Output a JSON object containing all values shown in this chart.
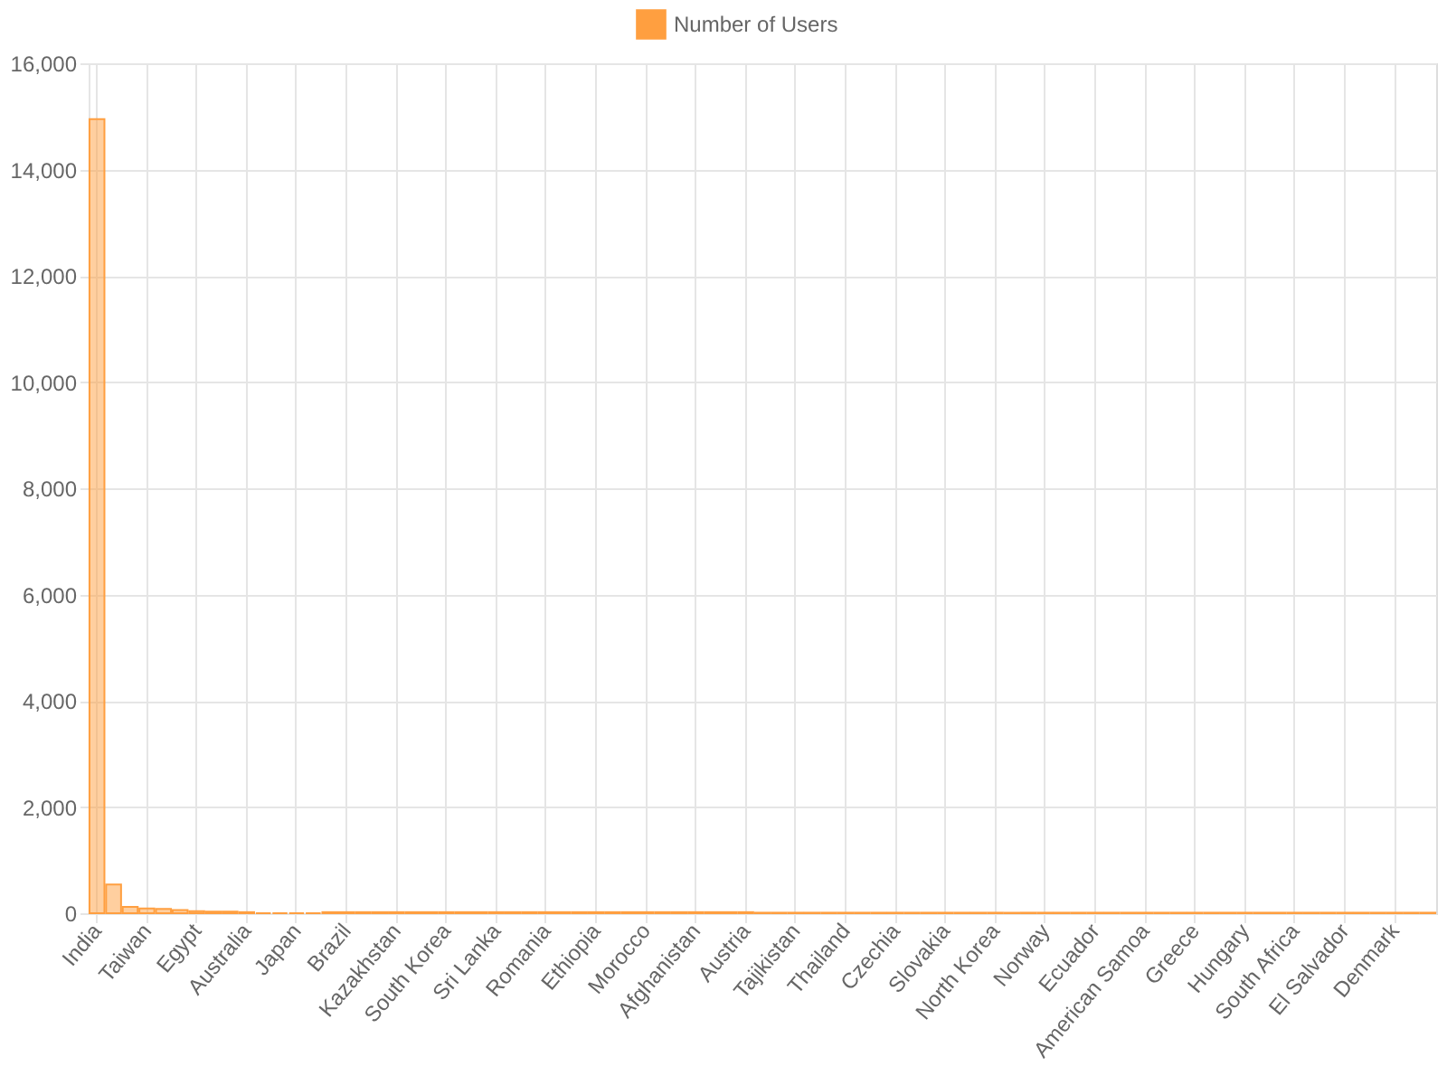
{
  "chart_data": {
    "type": "bar",
    "categories": [
      "India",
      null,
      null,
      "Taiwan",
      null,
      null,
      "Egypt",
      null,
      null,
      "Australia",
      null,
      null,
      "Japan",
      null,
      null,
      "Brazil",
      null,
      null,
      "Kazakhstan",
      null,
      null,
      "South Korea",
      null,
      null,
      "Sri Lanka",
      null,
      null,
      "Romania",
      null,
      null,
      "Ethiopia",
      null,
      null,
      "Morocco",
      null,
      null,
      "Afghanistan",
      null,
      null,
      "Austria",
      null,
      null,
      "Tajikistan",
      null,
      null,
      "Thailand",
      null,
      null,
      "Czechia",
      null,
      null,
      "Slovakia",
      null,
      null,
      "North Korea",
      null,
      null,
      "Norway",
      null,
      null,
      "Ecuador",
      null,
      null,
      "American Samoa",
      null,
      null,
      "Greece",
      null,
      null,
      "Hungary",
      null,
      null,
      "South Africa",
      null,
      null,
      "El Salvador",
      null,
      null,
      "Denmark",
      null,
      null
    ],
    "series": [
      {
        "name": "Number of Users",
        "color": "#ff9f40",
        "values": [
          14950,
          540,
          120,
          90,
          80,
          60,
          40,
          30,
          30,
          20,
          0,
          0,
          0,
          0,
          20,
          20,
          20,
          20,
          20,
          20,
          20,
          20,
          20,
          20,
          20,
          20,
          20,
          20,
          20,
          20,
          20,
          20,
          20,
          20,
          20,
          20,
          20,
          20,
          20,
          20,
          10,
          10,
          10,
          10,
          10,
          10,
          10,
          10,
          10,
          10,
          10,
          10,
          10,
          10,
          10,
          10,
          10,
          10,
          10,
          10,
          10,
          10,
          10,
          10,
          10,
          10,
          10,
          10,
          10,
          10,
          10,
          10,
          10,
          10,
          10,
          10,
          10,
          10,
          10,
          10,
          10
        ]
      }
    ],
    "ylim": [
      0,
      16000
    ],
    "yticks": [
      0,
      {
        "value": 2000,
        "label": "2,000"
      },
      {
        "value": 4000,
        "label": "4,000"
      },
      {
        "value": 6000,
        "label": "6,000"
      },
      {
        "value": 8000,
        "label": "8,000"
      },
      {
        "value": 10000,
        "label": "10,000"
      },
      {
        "value": 12000,
        "label": "12,000"
      },
      {
        "value": 14000,
        "label": "14,000"
      },
      {
        "value": 16000,
        "label": "16,000"
      }
    ],
    "grid": true,
    "legend": "top"
  }
}
